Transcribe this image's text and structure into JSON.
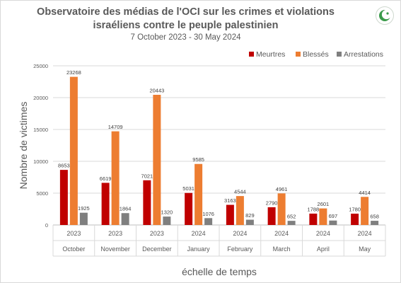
{
  "title_line1": "Observatoire des médias de l'OCI sur les crimes et violations",
  "title_line2": "israéliens contre le peuple palestinien",
  "subtitle": "7 October 2023 - 30 May 2024",
  "logo_icon": "oic-crescent-icon",
  "colors": {
    "Meurtres": "#c00000",
    "Blessés": "#ed7d31",
    "Arrestations": "#7f7f7f",
    "logo": "#3a9a4a"
  },
  "chart_data": {
    "type": "bar",
    "title": "Observatoire des médias de l'OCI sur les crimes et violations israéliens contre le peuple palestinien",
    "subtitle": "7 October 2023 - 30 May 2024",
    "xlabel": "échelle de temps",
    "ylabel": "Nombre de victimes",
    "ylim": [
      0,
      25000
    ],
    "yticks": [
      "0",
      "5000",
      "10000",
      "15000",
      "20000",
      "25000"
    ],
    "grid": true,
    "legend_position": "top-right",
    "categories": [
      {
        "year": "2023",
        "month": "October"
      },
      {
        "year": "2023",
        "month": "November"
      },
      {
        "year": "2023",
        "month": "December"
      },
      {
        "year": "2024",
        "month": "January"
      },
      {
        "year": "2024",
        "month": "February"
      },
      {
        "year": "2024",
        "month": "March"
      },
      {
        "year": "2024",
        "month": "April"
      },
      {
        "year": "2024",
        "month": "May"
      }
    ],
    "series": [
      {
        "name": "Meurtres",
        "values": [
          8653,
          6619,
          7021,
          5031,
          3163,
          2790,
          1788,
          1780
        ]
      },
      {
        "name": "Blessés",
        "values": [
          23268,
          14709,
          20443,
          9585,
          4544,
          4961,
          2601,
          4414
        ]
      },
      {
        "name": "Arrestations",
        "values": [
          1925,
          1864,
          1320,
          1076,
          829,
          652,
          697,
          658
        ]
      }
    ]
  }
}
